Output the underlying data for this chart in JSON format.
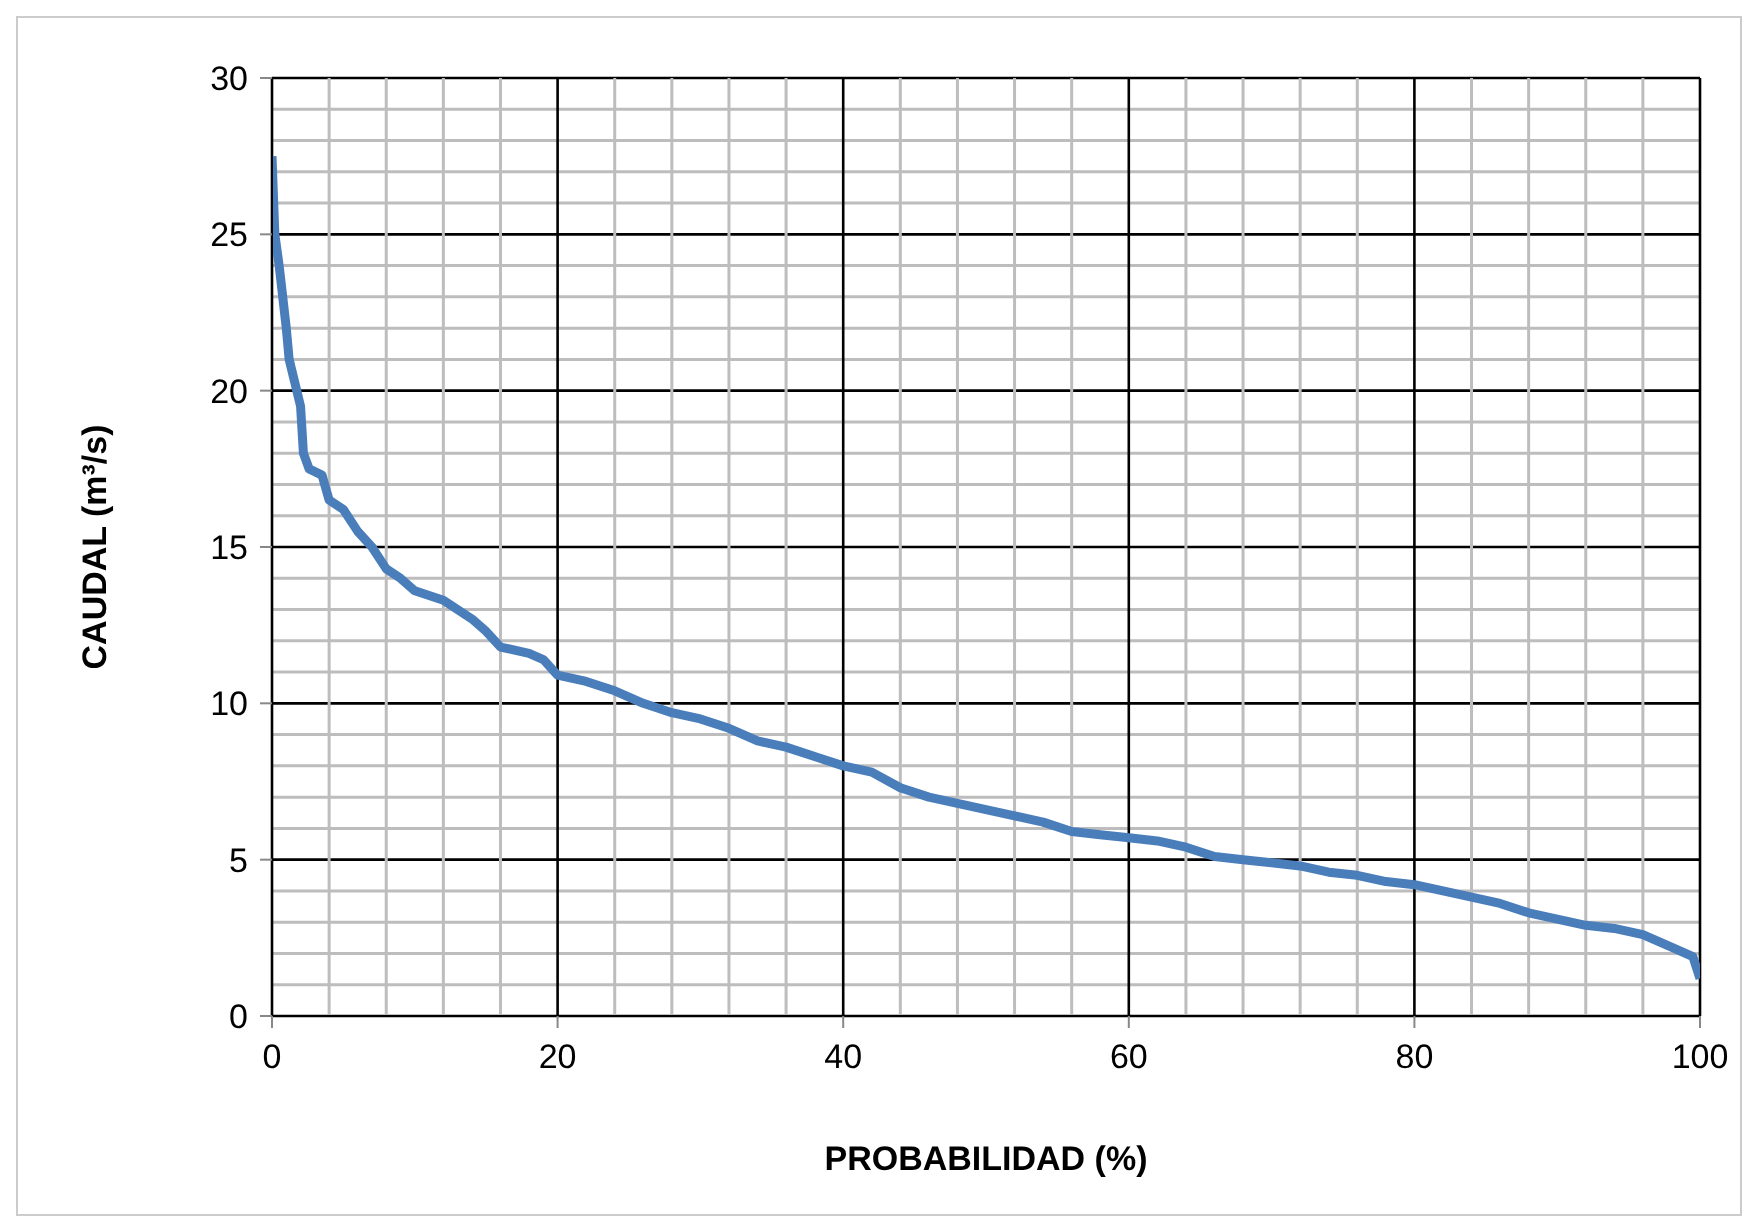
{
  "chart_data": {
    "type": "line",
    "xlabel": "PROBABILIDAD (%)",
    "ylabel": "CAUDAL (m³/s)",
    "x": [
      0,
      0.2,
      0.5,
      1,
      1.2,
      2,
      2.2,
      2.6,
      3.5,
      4,
      5,
      6,
      7,
      8,
      9,
      10,
      12,
      14,
      15,
      16,
      18,
      19,
      20,
      22,
      24,
      26,
      28,
      30,
      32,
      34,
      36,
      38,
      40,
      42,
      44,
      46,
      48,
      50,
      52,
      54,
      56,
      58,
      60,
      62,
      64,
      66,
      68,
      70,
      72,
      74,
      76,
      78,
      80,
      82,
      84,
      86,
      88,
      90,
      92,
      94,
      96,
      98,
      99.5,
      100
    ],
    "series": [
      {
        "color": "#4a7ebb",
        "values": [
          27.5,
          25,
          24,
          22,
          21,
          19.5,
          18,
          17.5,
          17.3,
          16.5,
          16.2,
          15.5,
          15,
          14.3,
          14,
          13.6,
          13.3,
          12.7,
          12.3,
          11.8,
          11.6,
          11.4,
          10.9,
          10.7,
          10.4,
          10,
          9.7,
          9.5,
          9.2,
          8.8,
          8.6,
          8.3,
          8.0,
          7.8,
          7.3,
          7.0,
          6.8,
          6.6,
          6.4,
          6.2,
          5.9,
          5.8,
          5.7,
          5.6,
          5.4,
          5.1,
          5.0,
          4.9,
          4.8,
          4.6,
          4.5,
          4.3,
          4.2,
          4.0,
          3.8,
          3.6,
          3.3,
          3.1,
          2.9,
          2.8,
          2.6,
          2.2,
          1.9,
          1.2
        ]
      }
    ],
    "xlim": [
      0,
      100
    ],
    "ylim": [
      0,
      30
    ],
    "xticks": [
      0,
      {
        "value": 4,
        "label": null
      },
      {
        "value": 8,
        "label": null
      },
      {
        "value": 12,
        "label": null
      },
      {
        "value": 16,
        "label": null
      },
      20,
      {
        "value": 24,
        "label": null
      },
      {
        "value": 28,
        "label": null
      },
      {
        "value": 32,
        "label": null
      },
      {
        "value": 36,
        "label": null
      },
      40,
      {
        "value": 44,
        "label": null
      },
      {
        "value": 48,
        "label": null
      },
      {
        "value": 52,
        "label": null
      },
      {
        "value": 56,
        "label": null
      },
      60,
      {
        "value": 64,
        "label": null
      },
      {
        "value": 68,
        "label": null
      },
      {
        "value": 72,
        "label": null
      },
      {
        "value": 76,
        "label": null
      },
      80,
      {
        "value": 84,
        "label": null
      },
      {
        "value": 88,
        "label": null
      },
      {
        "value": 92,
        "label": null
      },
      {
        "value": 96,
        "label": null
      },
      100
    ],
    "yticks": [
      0,
      {
        "value": 1,
        "label": null
      },
      {
        "value": 2,
        "label": null
      },
      {
        "value": 3,
        "label": null
      },
      {
        "value": 4,
        "label": null
      },
      5,
      {
        "value": 6,
        "label": null
      },
      {
        "value": 7,
        "label": null
      },
      {
        "value": 8,
        "label": null
      },
      {
        "value": 9,
        "label": null
      },
      10,
      {
        "value": 11,
        "label": null
      },
      {
        "value": 12,
        "label": null
      },
      {
        "value": 13,
        "label": null
      },
      {
        "value": 14,
        "label": null
      },
      15,
      {
        "value": 16,
        "label": null
      },
      {
        "value": 17,
        "label": null
      },
      {
        "value": 18,
        "label": null
      },
      {
        "value": 19,
        "label": null
      },
      20,
      {
        "value": 21,
        "label": null
      },
      {
        "value": 22,
        "label": null
      },
      {
        "value": 23,
        "label": null
      },
      {
        "value": 24,
        "label": null
      },
      25,
      {
        "value": 26,
        "label": null
      },
      {
        "value": 27,
        "label": null
      },
      {
        "value": 28,
        "label": null
      },
      {
        "value": 29,
        "label": null
      },
      30
    ],
    "grid": true,
    "marker": "none",
    "line_style": "solid",
    "legend": false
  }
}
